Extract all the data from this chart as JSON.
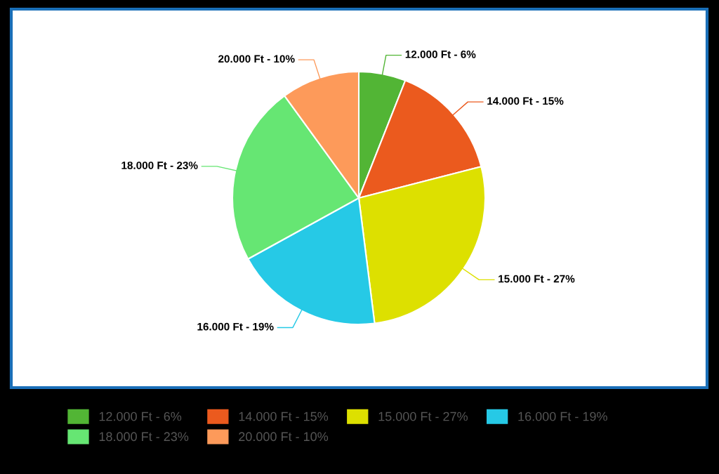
{
  "chart_data": {
    "type": "pie",
    "categories": [
      "12.000 Ft - 6%",
      "14.000 Ft - 15%",
      "15.000 Ft - 27%",
      "16.000 Ft - 19%",
      "18.000 Ft - 23%",
      "20.000 Ft - 10%"
    ],
    "values": [
      6,
      15,
      27,
      19,
      23,
      10
    ],
    "colors": [
      "#52b535",
      "#eb5a1e",
      "#dde000",
      "#26c9e6",
      "#66e673",
      "#fd9a5a"
    ],
    "legend": "bottom"
  }
}
